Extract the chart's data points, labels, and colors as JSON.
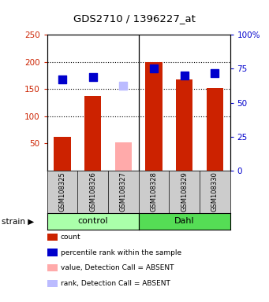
{
  "title": "GDS2710 / 1396227_at",
  "samples": [
    "GSM108325",
    "GSM108326",
    "GSM108327",
    "GSM108328",
    "GSM108329",
    "GSM108330"
  ],
  "bar_values": [
    62,
    138,
    52,
    200,
    168,
    152
  ],
  "bar_absent": [
    false,
    false,
    true,
    false,
    false,
    false
  ],
  "bar_color_present": "#cc2200",
  "bar_color_absent": "#ffaaaa",
  "dot_values_left": [
    168,
    172,
    156,
    188,
    175,
    180
  ],
  "dot_absent": [
    false,
    false,
    true,
    false,
    false,
    false
  ],
  "dot_color_present": "#0000cc",
  "dot_color_absent": "#bbbbff",
  "ylim_left": [
    0,
    250
  ],
  "ylim_right": [
    0,
    100
  ],
  "yticks_left": [
    50,
    100,
    150,
    200,
    250
  ],
  "yticks_right": [
    0,
    25,
    50,
    75,
    100
  ],
  "ytick_labels_left": [
    "50",
    "100",
    "150",
    "200",
    "250"
  ],
  "ytick_labels_right": [
    "0",
    "25",
    "50",
    "75",
    "100%"
  ],
  "left_tick_color": "#cc2200",
  "right_tick_color": "#0000cc",
  "grid_values": [
    100,
    150,
    200
  ],
  "bar_width": 0.55,
  "dot_size": 55,
  "control_label": "control",
  "dahl_label": "Dahl",
  "strain_label": "strain",
  "control_color": "#aaffaa",
  "dahl_color": "#55dd55",
  "sample_box_color": "#cccccc",
  "legend_items": [
    {
      "color": "#cc2200",
      "label": "count"
    },
    {
      "color": "#0000cc",
      "label": "percentile rank within the sample"
    },
    {
      "color": "#ffaaaa",
      "label": "value, Detection Call = ABSENT"
    },
    {
      "color": "#bbbbff",
      "label": "rank, Detection Call = ABSENT"
    }
  ]
}
